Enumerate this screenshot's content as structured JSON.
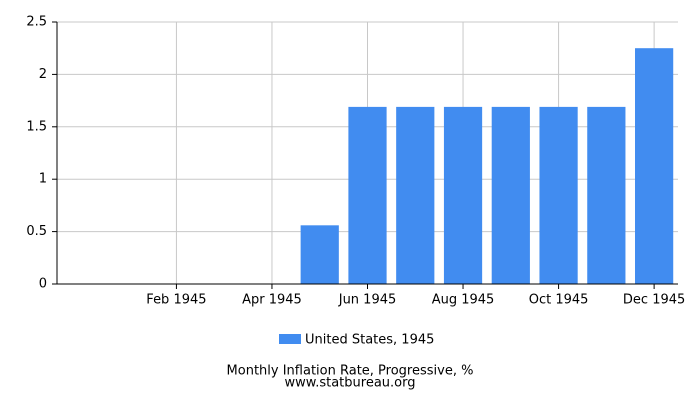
{
  "chart_data": {
    "type": "bar",
    "title": "Monthly Inflation Rate, Progressive, %",
    "source": "www.statbureau.org",
    "categories": [
      null,
      "Feb 1945",
      null,
      "Apr 1945",
      null,
      "Jun 1945",
      null,
      "Aug 1945",
      null,
      "Oct 1945",
      null,
      "Dec 1945"
    ],
    "series": [
      {
        "name": "United States, 1945",
        "color": "#418cf0",
        "values": [
          0,
          0,
          0,
          0,
          0.56,
          1.69,
          1.69,
          1.69,
          1.69,
          1.69,
          1.69,
          2.25
        ]
      }
    ],
    "ylim": [
      0,
      2.5
    ],
    "yticks": [
      0,
      0.5,
      1,
      1.5,
      2,
      2.5
    ],
    "grid": true,
    "legend": "bottom"
  }
}
